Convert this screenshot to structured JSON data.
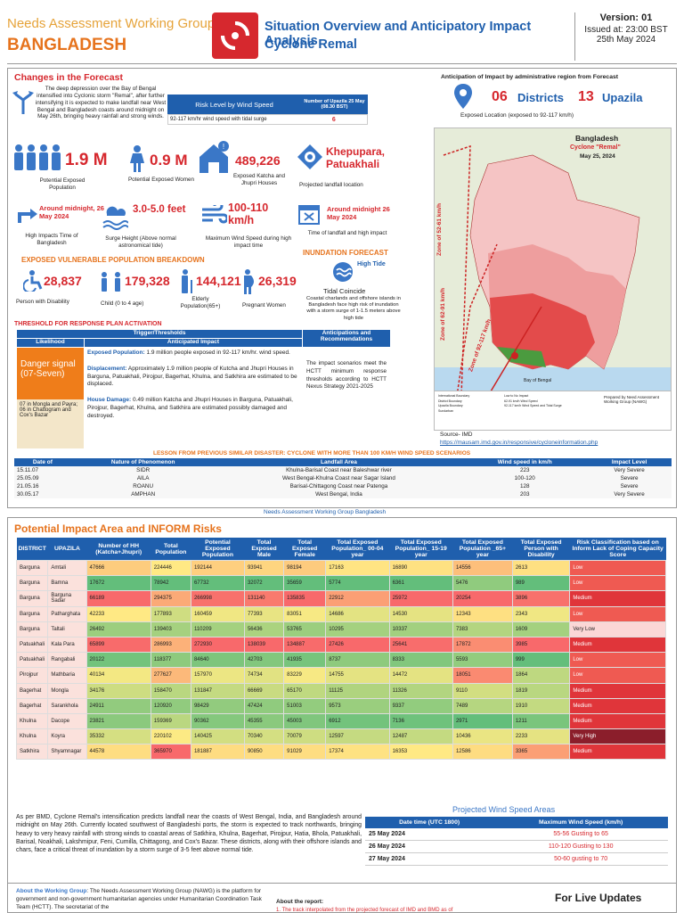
{
  "header": {
    "org": "Needs Assessment Working Group",
    "country": "BANGLADESH",
    "title_line1": "Situation Overview and Anticipatory Impact Analysis",
    "title_line2": "Cyclone Remal",
    "version": "Version: 01",
    "issued": "Issued at: 23:00 BST",
    "date": "25th May 2024"
  },
  "forecast": {
    "heading": "Changes in the Forecast",
    "text": "The deep depression over the Bay of Bengal intensified into Cyclonic storm \"Remal\", after further intensifying it is expected to make landfall near West Bengal and Bangladesh coasts around midnight on May 26th, bringing heavy rainfall and strong winds.",
    "risk_table_title": "Risk Level by Wind Speed",
    "risk_table_col": "Number of Upazila 25 May (08.30 BST)",
    "risk_row_label": "92-117 km/hr wind speed with tidal surge",
    "risk_row_value": "6"
  },
  "anticipation": {
    "heading": "Anticipation of Impact by administrative region from Forecast",
    "districts_num": "06",
    "districts_label": "Districts",
    "upazila_num": "13",
    "upazila_label": "Upazila",
    "exposed_label": "Exposed Location (exposed to 92-117 km/h)"
  },
  "stats": {
    "pop_value": "1.9 M",
    "pop_label": "Potential Exposed Population",
    "women_value": "0.9 M",
    "women_label": "Potential Exposed Women",
    "houses_value": "489,226",
    "houses_label": "Exposed Katcha and Jhupri Houses",
    "landfall_value": "Khepupara, Patuakhali",
    "landfall_label": "Projected landfall location",
    "hightime_value": "Around midnight, 26 May 2024",
    "hightime_label": "High Impacts Time of Bangladesh",
    "surge_value": "3.0-5.0 feet",
    "surge_label": "Surge Height (Above normal astronomical tide)",
    "wind_value": "100-110 km/h",
    "wind_label": "Maximum Wind Speed during high impact time",
    "landtime_value": "Around midnight 26 May 2024",
    "landtime_label": "Time of landfall and high impact"
  },
  "vulnerable": {
    "heading": "EXPOSED VULNERABLE POPULATION BREAKDOWN",
    "disability_value": "28,837",
    "disability_label": "Person with Disability",
    "child_value": "179,328",
    "child_label": "Child (0 to 4 age)",
    "elderly_value": "144,121",
    "elderly_label": "Elderly Population(65+)",
    "pregnant_value": "26,319",
    "pregnant_label": "Pregnant Women"
  },
  "inundation": {
    "heading": "INUNDATION FORECAST",
    "tide_label": "High Tide",
    "coincide": "Tidal Coincide",
    "text": "Coastal charlands and offshore islands in Bangladesh face high risk of inundation with a storm surge of 1-1.5 meters above high tide"
  },
  "map": {
    "title": "Bangladesh",
    "subtitle": "Cyclone \"Remal\"",
    "date": "May 25, 2024",
    "zone1": "Zone of 52-61 km/h",
    "zone2": "Zone of 62-91 km/h",
    "zone3": "Zone of 92-117 km/h",
    "bay": "Bay of Bengal",
    "legend": [
      "International Boundary",
      "District Boundary",
      "Upazila Boundary",
      "Sundarban",
      "Low to No Impact",
      "62-91 km/h Wind Speed",
      "92-117 km/h Wind Speed and Tidal Surge"
    ],
    "prepared": "Prepared by Need Assessment Working Group (NAWG)",
    "source": "Source- IMD",
    "url": "https://mausam.imd.gov.in/responsive/cycloneinformation.php"
  },
  "threshold": {
    "heading": "THRESHOLD FOR RESPONSE PLAN ACTIVATION",
    "col_trigger": "Trigger/Thresholds",
    "col_likelihood": "Likelihood",
    "col_impact": "Anticipated Impact",
    "col_recs": "Anticipations and Recommendations",
    "signal": "Danger signal (07-Seven)",
    "signal_note": "07 in Mongla and Payra; 06 in Chattogram and Cox's Bazar",
    "impact1_label": "Exposed Population:",
    "impact1_text": "1.9 million people exposed in 92-117 km/hr. wind speed.",
    "impact2_label": "Displacement:",
    "impact2_text": "Approximately 1.9 million people of Kutcha and Jhupri Houses in Barguna, Patuakhali, Pirojpur, Bagerhat, Khulna, and Satkhira are estimated to be displaced.",
    "impact3_label": "House Damage:",
    "impact3_text": "0.49 million Katcha and Jhupri Houses in Barguna, Patuakhali, Pirojpur, Bagerhat, Khulna, and Satkhira are estimated possibly damaged and destroyed.",
    "recs_text": "The impact scenarios meet the HCTT minimum response thresholds according to HCTT Nexus Strategy 2021-2025"
  },
  "lessons": {
    "heading": "LESSON FROM PREVIOUS SIMILAR DISASTER: CYCLONE WITH MORE THAN 100 KM/H WIND SPEED SCENARIOS",
    "columns": [
      "Date of",
      "Nature of Phenomenon",
      "Landfall Area",
      "Wind speed in km/h",
      "Impact Level"
    ],
    "rows": [
      [
        "15.11.07",
        "SIDR",
        "Khulna-Barisal Coast near Baleshwar river",
        "223",
        "Very Severe"
      ],
      [
        "25.05.09",
        "AILA",
        "West Bengal-Khulna Coast near Sagar Island",
        "100-120",
        "Severe"
      ],
      [
        "21.05.16",
        "ROANU",
        "Barisal-Chittagong Coast near Patenga",
        "128",
        "Severe"
      ],
      [
        "30.05.17",
        "AMPHAN",
        "West Bengal, India",
        "203",
        "Very Severe"
      ]
    ],
    "footer": "Needs Assessment Working Group Bangladesh"
  },
  "impact": {
    "heading": "Potential Impact Area and INFORM Risks",
    "columns": [
      "DISTRICT",
      "UPAZILA",
      "Number of HH (Katcha+Jhupri)",
      "Total Population",
      "Potential Exposed Population",
      "Total Exposed Male",
      "Total Exposed Female",
      "Total Exposed Population_ 00-04 year",
      "Total Exposed Population_ 15-19 year",
      "Total Exposed Population _65+ year",
      "Total Exposed Person with Disability",
      "Risk Classification based on Inform Lack of Coping Capacity Score"
    ],
    "rows": [
      [
        "Barguna",
        "Amtali",
        "47666",
        "224446",
        "192144",
        "93941",
        "98194",
        "17163",
        "16890",
        "14556",
        "2613",
        "Low"
      ],
      [
        "Barguna",
        "Bamna",
        "17672",
        "78942",
        "67732",
        "32072",
        "35659",
        "5774",
        "6361",
        "5476",
        "989",
        "Low"
      ],
      [
        "Barguna",
        "Barguna Sadar",
        "66189",
        "294375",
        "266998",
        "131140",
        "135835",
        "22912",
        "25972",
        "20254",
        "3896",
        "Medium"
      ],
      [
        "Barguna",
        "Patharghata",
        "42233",
        "177893",
        "160459",
        "77393",
        "83051",
        "14686",
        "14530",
        "12343",
        "2343",
        "Low"
      ],
      [
        "Barguna",
        "Taltali",
        "26492",
        "139403",
        "110209",
        "56436",
        "53765",
        "10295",
        "10337",
        "7383",
        "1609",
        "Very Low"
      ],
      [
        "Patuakhali",
        "Kala Para",
        "65899",
        "286993",
        "272930",
        "138039",
        "134887",
        "27426",
        "25641",
        "17872",
        "3985",
        "Medium"
      ],
      [
        "Patuakhali",
        "Rangabali",
        "20122",
        "118377",
        "84640",
        "42703",
        "41935",
        "8737",
        "8333",
        "5593",
        "999",
        "Low"
      ],
      [
        "Pirojpur",
        "Mathbaria",
        "40134",
        "277627",
        "157970",
        "74734",
        "83229",
        "14755",
        "14472",
        "18051",
        "1864",
        "Low"
      ],
      [
        "Bagerhat",
        "Mongla",
        "34176",
        "158470",
        "131847",
        "66669",
        "65170",
        "11125",
        "11326",
        "9110",
        "1819",
        "Medium"
      ],
      [
        "Bagerhat",
        "Sarankhola",
        "24911",
        "120920",
        "98429",
        "47424",
        "51003",
        "9573",
        "9337",
        "7489",
        "1910",
        "Medium"
      ],
      [
        "Khulna",
        "Dacope",
        "23821",
        "159369",
        "90362",
        "45355",
        "45003",
        "6912",
        "7136",
        "2971",
        "1211",
        "Medium"
      ],
      [
        "Khulna",
        "Koyra",
        "35332",
        "220102",
        "140425",
        "70340",
        "70079",
        "12597",
        "12487",
        "10436",
        "2233",
        "Very High"
      ],
      [
        "Satkhira",
        "Shyamnagar",
        "44578",
        "365970",
        "181887",
        "90850",
        "91029",
        "17374",
        "16353",
        "12586",
        "3365",
        "Medium"
      ]
    ]
  },
  "summary": "As per BMD, Cyclone Remal's intensification predicts landfall near the coasts of West Bengal, India, and Bangladesh around midnight on May 26th. Currently located southwest of Bangladeshi ports, the storm is expected to track northwards, bringing heavy to very heavy rainfall with strong winds to coastal areas of Satkhira, Khulna, Bagerhat, Pirojpur, Hatia, Bhola, Patuakhali, Barisal, Noakhali, Lakshmipur, Feni, Cumilla, Chittagong, and Cox's Bazar. These districts, along with their offshore islands and chars, face a critical threat of inundation by a storm surge of 3-5 feet above normal tide.",
  "wind": {
    "heading": "Projected Wind Speed Areas",
    "col_date": "Date time (UTC 1800)",
    "col_speed": "Maximum Wind Speed (km/h)",
    "rows": [
      [
        "25 May 2024",
        "55-56 Gusting to 65"
      ],
      [
        "26 May 2024",
        "110-120 Gusting to 130"
      ],
      [
        "27 May 2024",
        "50-60 gusting to 70"
      ]
    ]
  },
  "footer": {
    "about_label": "About the Working Group",
    "about_text": ": The Needs Assessment Working Group (NAWG) is the platform for government and non-government humanitarian agencies under Humanitarian Coordination Task Team (HCTT). The secretariat of the",
    "report_label": "About the report:",
    "report_text": "1. The track interpolated from the projected forecast of IMD and BMD as of",
    "live": "For Live Updates"
  },
  "colors": {
    "red": "#d6282e",
    "blue": "#1f5fad",
    "orange": "#e6731d"
  }
}
